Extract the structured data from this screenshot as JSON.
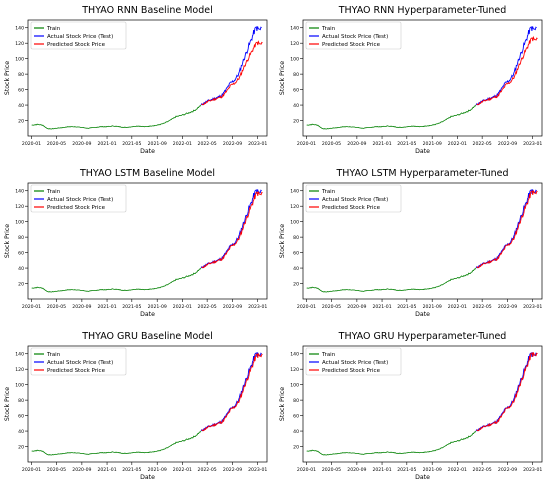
{
  "colors": {
    "train": "#008000",
    "actual": "#0000ff",
    "predicted": "#ff0000"
  },
  "chart_data": [
    {
      "type": "line",
      "title": "THYAO RNN Baseline Model",
      "xlabel": "Date",
      "ylabel": "Stock Price",
      "yticks": [
        20,
        40,
        60,
        80,
        100,
        120,
        140
      ],
      "ylim": [
        0,
        150
      ],
      "xticks": [
        "2020-01",
        "2020-05",
        "2020-09",
        "2021-01",
        "2021-05",
        "2021-09",
        "2022-01",
        "2022-05",
        "2022-09",
        "2023-01"
      ],
      "legend": [
        "Train",
        "Actual Stock Price (Test)",
        "Predicted Stock Price"
      ],
      "legend_position": "top-left",
      "pred_scale": 0.86
    },
    {
      "type": "line",
      "title": "THYAO RNN Hyperparameter-Tuned",
      "xlabel": "Date",
      "ylabel": "Stock Price",
      "yticks": [
        20,
        40,
        60,
        80,
        100,
        120,
        140
      ],
      "ylim": [
        0,
        150
      ],
      "xticks": [
        "2020-01",
        "2020-05",
        "2020-09",
        "2021-01",
        "2021-05",
        "2021-09",
        "2022-01",
        "2022-05",
        "2022-09",
        "2023-01"
      ],
      "legend": [
        "Train",
        "Actual Stock Price (Test)",
        "Predicted Stock Price"
      ],
      "legend_position": "top-left",
      "pred_scale": 0.9
    },
    {
      "type": "line",
      "title": "THYAO LSTM Baseline Model",
      "xlabel": "Date",
      "ylabel": "Stock Price",
      "yticks": [
        20,
        40,
        60,
        80,
        100,
        120,
        140
      ],
      "ylim": [
        0,
        150
      ],
      "xticks": [
        "2020-01",
        "2020-05",
        "2020-09",
        "2021-01",
        "2021-05",
        "2021-09",
        "2022-01",
        "2022-05",
        "2022-09",
        "2023-01"
      ],
      "legend": [
        "Train",
        "Actual Stock Price (Test)",
        "Predicted Stock Price"
      ],
      "legend_position": "top-left",
      "pred_scale": 0.98
    },
    {
      "type": "line",
      "title": "THYAO LSTM Hyperparameter-Tuned",
      "xlabel": "Date",
      "ylabel": "Stock Price",
      "yticks": [
        20,
        40,
        60,
        80,
        100,
        120,
        140
      ],
      "ylim": [
        0,
        150
      ],
      "xticks": [
        "2020-01",
        "2020-05",
        "2020-09",
        "2021-01",
        "2021-05",
        "2021-09",
        "2022-01",
        "2022-05",
        "2022-09",
        "2023-01"
      ],
      "legend": [
        "Train",
        "Actual Stock Price (Test)",
        "Predicted Stock Price"
      ],
      "legend_position": "top-left",
      "pred_scale": 0.99
    },
    {
      "type": "line",
      "title": "THYAO GRU Baseline Model",
      "xlabel": "Date",
      "ylabel": "Stock Price",
      "yticks": [
        20,
        40,
        60,
        80,
        100,
        120,
        140
      ],
      "ylim": [
        0,
        150
      ],
      "xticks": [
        "2020-01",
        "2020-05",
        "2020-09",
        "2021-01",
        "2021-05",
        "2021-09",
        "2022-01",
        "2022-05",
        "2022-09",
        "2023-01"
      ],
      "legend": [
        "Train",
        "Actual Stock Price (Test)",
        "Predicted Stock Price"
      ],
      "legend_position": "top-left",
      "pred_scale": 0.99
    },
    {
      "type": "line",
      "title": "THYAO GRU Hyperparameter-Tuned",
      "xlabel": "Date",
      "ylabel": "Stock Price",
      "yticks": [
        20,
        40,
        60,
        80,
        100,
        120,
        140
      ],
      "ylim": [
        0,
        150
      ],
      "xticks": [
        "2020-01",
        "2020-05",
        "2020-09",
        "2021-01",
        "2021-05",
        "2021-09",
        "2022-01",
        "2022-05",
        "2022-09",
        "2023-01"
      ],
      "legend": [
        "Train",
        "Actual Stock Price (Test)",
        "Predicted Stock Price"
      ],
      "legend_position": "top-left",
      "pred_scale": 1.0
    }
  ],
  "series": {
    "train": [
      [
        "2020-01-02",
        14
      ],
      [
        "2020-02-01",
        15
      ],
      [
        "2020-02-25",
        14
      ],
      [
        "2020-03-15",
        10
      ],
      [
        "2020-04-01",
        9
      ],
      [
        "2020-05-01",
        10
      ],
      [
        "2020-06-01",
        11
      ],
      [
        "2020-07-01",
        12
      ],
      [
        "2020-08-01",
        12
      ],
      [
        "2020-09-01",
        11
      ],
      [
        "2020-10-01",
        10
      ],
      [
        "2020-11-01",
        11
      ],
      [
        "2020-12-01",
        12
      ],
      [
        "2021-01-01",
        12
      ],
      [
        "2021-02-01",
        13
      ],
      [
        "2021-03-01",
        12
      ],
      [
        "2021-04-01",
        11
      ],
      [
        "2021-05-01",
        12
      ],
      [
        "2021-06-01",
        13
      ],
      [
        "2021-07-01",
        12
      ],
      [
        "2021-08-01",
        13
      ],
      [
        "2021-09-01",
        14
      ],
      [
        "2021-10-01",
        16
      ],
      [
        "2021-11-01",
        20
      ],
      [
        "2021-12-01",
        25
      ],
      [
        "2022-01-01",
        27
      ],
      [
        "2022-02-01",
        30
      ],
      [
        "2022-03-01",
        33
      ],
      [
        "2022-04-01",
        40
      ]
    ],
    "actual": [
      [
        "2022-04-01",
        40
      ],
      [
        "2022-05-01",
        45
      ],
      [
        "2022-06-01",
        48
      ],
      [
        "2022-06-20",
        50
      ],
      [
        "2022-07-10",
        52
      ],
      [
        "2022-08-01",
        60
      ],
      [
        "2022-08-20",
        68
      ],
      [
        "2022-09-10",
        72
      ],
      [
        "2022-10-01",
        80
      ],
      [
        "2022-10-20",
        95
      ],
      [
        "2022-11-10",
        110
      ],
      [
        "2022-12-01",
        125
      ],
      [
        "2022-12-15",
        135
      ],
      [
        "2022-12-25",
        140
      ],
      [
        "2023-01-10",
        137
      ],
      [
        "2023-01-20",
        140
      ]
    ]
  }
}
